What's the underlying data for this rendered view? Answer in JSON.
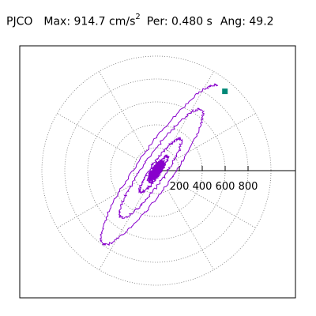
{
  "header": {
    "station": "PJCO",
    "max_label": "Max:",
    "max_value": "914.7",
    "max_unit": "cm/s",
    "max_unit_exp": "2",
    "per_label": "Per:",
    "per_value": "0.480 s",
    "ang_label": "Ang:",
    "ang_value": "49.2"
  },
  "chart_data": {
    "type": "polar-orbit",
    "radial_ticks": [
      200,
      400,
      600,
      800
    ],
    "radial_max": 1000,
    "angular_spoke_step_deg": 30,
    "grid": "dotted",
    "peak": {
      "value": 914.7,
      "angle_deg": 49.2
    },
    "colors": {
      "trace": "#8800cc",
      "peak_marker": "#008877",
      "grid": "#777777",
      "axis": "#000000"
    }
  }
}
